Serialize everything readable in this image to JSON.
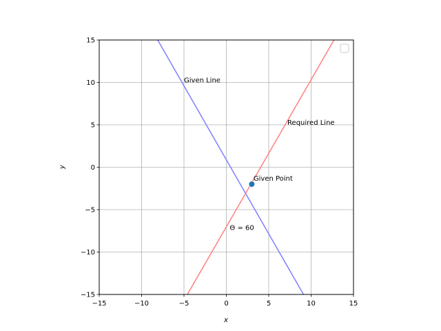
{
  "chart_data": {
    "type": "line",
    "xlabel": "x",
    "ylabel": "y",
    "xlim": [
      -15,
      15
    ],
    "ylim": [
      -15,
      15
    ],
    "xticks": [
      -15,
      -10,
      -5,
      0,
      5,
      10,
      15
    ],
    "yticks": [
      -15,
      -10,
      -5,
      0,
      5,
      10,
      15
    ],
    "xtick_labels": [
      "−15",
      "−10",
      "−5",
      "0",
      "5",
      "10",
      "15"
    ],
    "ytick_labels": [
      "−15",
      "−10",
      "−5",
      "0",
      "5",
      "10",
      "15"
    ],
    "grid": true,
    "legend": "top-right",
    "series": [
      {
        "key": "given_line",
        "color": "#7f7fff",
        "points": [
          [
            -8.1,
            15
          ],
          [
            9.1,
            -15
          ]
        ]
      },
      {
        "key": "required_line",
        "color": "#ff7f7f",
        "points": [
          [
            -4.6,
            -15
          ],
          [
            12.7,
            15
          ]
        ]
      }
    ],
    "point": {
      "x": 3,
      "y": -2,
      "color": "#1f77b4"
    },
    "annotations": [
      {
        "text": "Given Line",
        "x": -5,
        "y": 10
      },
      {
        "text": "Required Line",
        "x": 7.2,
        "y": 5
      },
      {
        "text": "Given Point",
        "x": 3.2,
        "y": -1.6
      },
      {
        "text": "Θ = 60",
        "x": 0.4,
        "y": -7.4
      }
    ]
  }
}
